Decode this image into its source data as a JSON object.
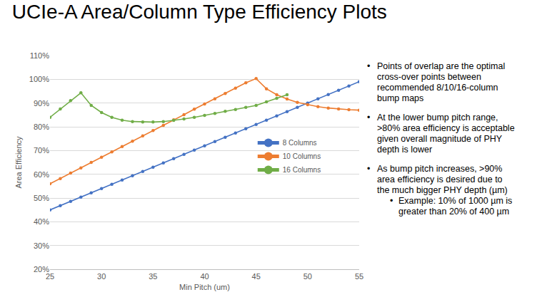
{
  "chart_data": {
    "type": "line",
    "title": "UCIe-A Area/Column Type Efficiency Plots",
    "x_label": "Min Pitch (um)",
    "y_label": "Area Efficiency",
    "x": [
      25,
      26,
      27,
      28,
      29,
      30,
      31,
      32,
      33,
      34,
      35,
      36,
      37,
      38,
      39,
      40,
      41,
      42,
      43,
      44,
      45,
      46,
      47,
      48,
      49,
      50,
      51,
      52,
      53,
      54,
      55
    ],
    "series": [
      {
        "name": "8 Columns",
        "color": "#4472c4",
        "marker": "circle",
        "line_style": "solid",
        "values": [
          45,
          46.8,
          48.6,
          50.4,
          52.2,
          54,
          55.8,
          57.6,
          59.4,
          61.2,
          63,
          64.8,
          66.6,
          68.4,
          70.2,
          72,
          73.8,
          75.6,
          77.4,
          79.2,
          81,
          82.8,
          84.6,
          86.4,
          88.2,
          90,
          91.8,
          93.6,
          95.4,
          97.2,
          99
        ]
      },
      {
        "name": "10 Columns",
        "color": "#ed7d31",
        "marker": "circle",
        "line_style": "solid",
        "values": [
          56,
          58.2,
          60.5,
          62.7,
          65,
          67.2,
          69.4,
          71.7,
          73.9,
          76.2,
          78.4,
          80.6,
          82.9,
          85.1,
          87.4,
          89.6,
          91.8,
          94,
          96.3,
          98.5,
          100.3,
          96,
          93.5,
          91.7,
          90.3,
          89.3,
          88.5,
          87.9,
          87.5,
          87.2,
          87
        ]
      },
      {
        "name": "16 Columns",
        "color": "#70ad47",
        "marker": "circle",
        "line_style": "solid",
        "values": [
          84,
          87.5,
          91,
          94.3,
          89,
          86,
          84,
          82.8,
          82.2,
          82,
          82,
          82.2,
          82.7,
          83.3,
          84,
          84.8,
          85.6,
          86.5,
          87.3,
          88.2,
          89,
          90.5,
          92,
          93.5,
          null,
          null,
          null,
          null,
          null,
          null,
          null
        ]
      }
    ],
    "xlim": [
      25,
      55
    ],
    "xticks": [
      25,
      30,
      35,
      40,
      45,
      50,
      55
    ],
    "ylim": [
      20,
      110
    ],
    "yticks": [
      {
        "value": 20,
        "label": "20%"
      },
      {
        "value": 30,
        "label": "30%"
      },
      {
        "value": 40,
        "label": "40%"
      },
      {
        "value": 50,
        "label": "50%"
      },
      {
        "value": 60,
        "label": "60%"
      },
      {
        "value": 70,
        "label": "70%"
      },
      {
        "value": 80,
        "label": "80%"
      },
      {
        "value": 90,
        "label": "90%"
      },
      {
        "value": 100,
        "label": "100%"
      },
      {
        "value": 110,
        "label": "110%"
      }
    ],
    "grid": true,
    "legend": "right",
    "annotations": [
      {
        "lines": [
          "Points of overlap are the optimal",
          "cross-over points between",
          "recommended 8/10/16-column",
          "bump maps"
        ]
      },
      {
        "lines": [
          "At the lower bump pitch range,",
          ">80% area efficiency is acceptable",
          "given overall magnitude of PHY",
          "depth is lower"
        ]
      },
      {
        "lines": [
          "As bump pitch increases, >90%",
          "area efficiency is desired due to",
          "the much bigger PHY depth (µm)"
        ],
        "sub": [
          {
            "lines": [
              "Example: 10% of 1000 µm is",
              "greater than 20% of 400 µm"
            ]
          }
        ]
      }
    ]
  }
}
